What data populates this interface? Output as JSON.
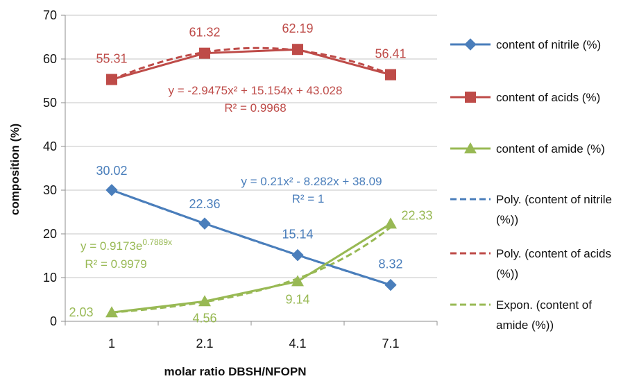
{
  "chart_data": {
    "type": "line",
    "categories": [
      "1",
      "2.1",
      "4.1",
      "7.1"
    ],
    "xlabel": "molar ratio DBSH/NFOPN",
    "ylabel": "composition (%)",
    "ylim": [
      0,
      70
    ],
    "yticks": [
      "0",
      "10",
      "20",
      "30",
      "40",
      "50",
      "60",
      "70"
    ],
    "grid": "horizontal",
    "legend_position": "right",
    "series": [
      {
        "name": "content of nitrile (%)",
        "color": "#4a7ebb",
        "marker": "diamond",
        "values": [
          30.02,
          22.36,
          15.14,
          8.32
        ],
        "labels": [
          "30.02",
          "22.36",
          "15.14",
          "8.32"
        ]
      },
      {
        "name": "content of acids (%)",
        "color": "#be4b48",
        "marker": "square",
        "values": [
          55.31,
          61.32,
          62.19,
          56.41
        ],
        "labels": [
          "55.31",
          "61.32",
          "62.19",
          "56.41"
        ]
      },
      {
        "name": "content of amide (%)",
        "color": "#98b954",
        "marker": "triangle",
        "values": [
          2.03,
          4.56,
          9.14,
          22.33
        ],
        "labels": [
          "2.03",
          "4.56",
          "9.14",
          "22.33"
        ]
      }
    ],
    "trendlines": [
      {
        "name": "Poly. (content of nitrile (%))",
        "legend_lines": [
          "Poly. (content of nitrile",
          "(%))"
        ],
        "color": "#4a7ebb",
        "kind": "poly",
        "coef": [
          0.21,
          -8.282,
          38.09
        ],
        "equation": "y = 0.21x² - 8.282x + 38.09",
        "r2": "R² = 1"
      },
      {
        "name": "Poly. (content of acids (%))",
        "legend_lines": [
          "Poly. (content of acids",
          "(%))"
        ],
        "color": "#be4b48",
        "kind": "poly",
        "coef": [
          -2.9475,
          15.154,
          43.028
        ],
        "equation": "y = -2.9475x² + 15.154x + 43.028",
        "r2": "R² = 0.9968"
      },
      {
        "name": "Expon. (content of amide (%))",
        "legend_lines": [
          "Expon. (content of",
          "amide (%))"
        ],
        "color": "#98b954",
        "kind": "exp",
        "coef": [
          0.9173,
          0.7889
        ],
        "equation": "y = 0.9173e",
        "exponent": "0.7889x",
        "r2": "R² = 0.9979"
      }
    ]
  }
}
